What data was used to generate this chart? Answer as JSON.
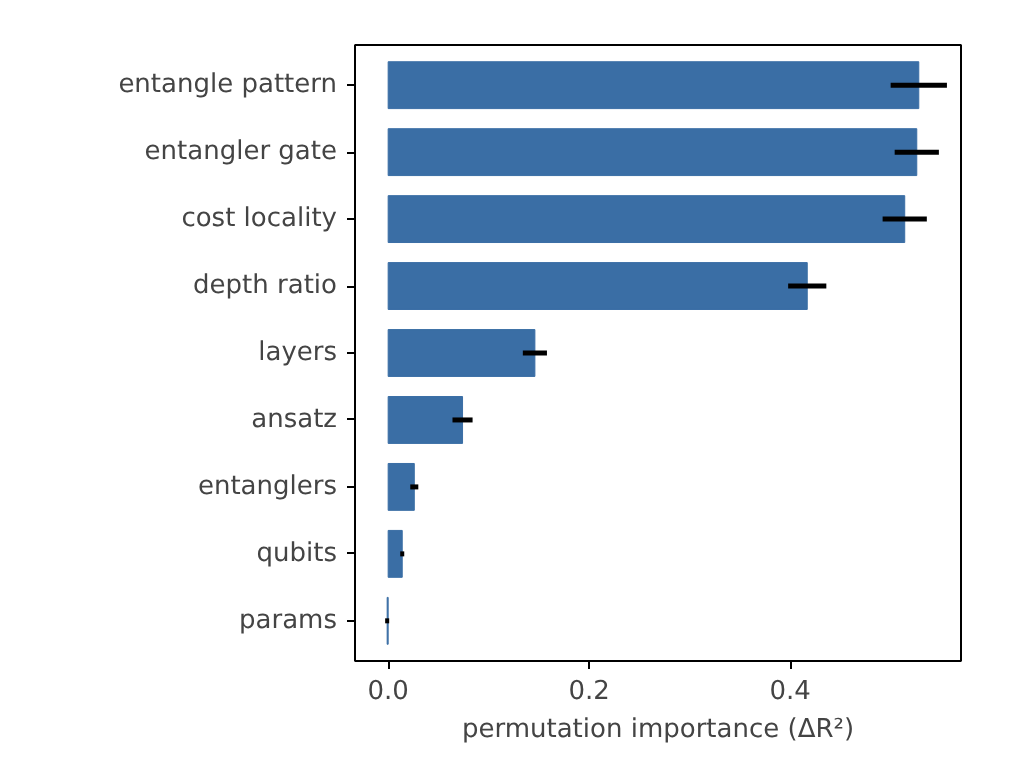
{
  "chart_data": {
    "type": "bar",
    "orientation": "horizontal",
    "xlabel": "permutation importance (ΔR²)",
    "categories": [
      "entangle pattern",
      "entangler gate",
      "cost locality",
      "depth ratio",
      "layers",
      "ansatz",
      "entanglers",
      "qubits",
      "params"
    ],
    "values": [
      0.528,
      0.526,
      0.514,
      0.417,
      0.146,
      0.074,
      0.026,
      0.014,
      -0.001
    ],
    "errors": [
      0.028,
      0.022,
      0.022,
      0.019,
      0.012,
      0.01,
      0.004,
      0.002,
      0.002
    ],
    "color": "#3a6ea5",
    "xlim": [
      -0.033,
      0.57
    ],
    "xticks": [
      {
        "value": 0,
        "label": "0.0"
      },
      {
        "value": 0.2,
        "label": "0.2"
      },
      {
        "value": 0.4,
        "label": "0.4"
      }
    ],
    "grid": false
  }
}
